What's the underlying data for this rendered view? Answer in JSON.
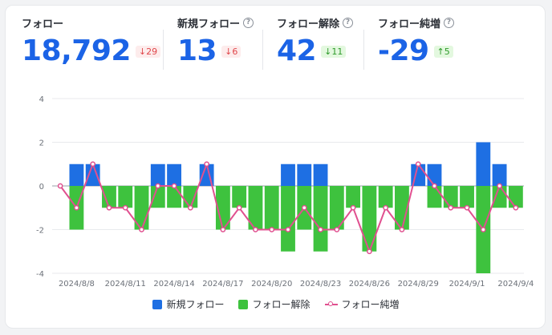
{
  "stats": [
    {
      "label": "フォロー",
      "value": "18,792",
      "delta": "29",
      "arrow": "↓",
      "tone": "red",
      "help": false
    },
    {
      "label": "新規フォロー",
      "value": "13",
      "delta": "6",
      "arrow": "↓",
      "tone": "red",
      "help": true
    },
    {
      "label": "フォロー解除",
      "value": "42",
      "delta": "11",
      "arrow": "↓",
      "tone": "green",
      "help": true
    },
    {
      "label": "フォロー純増",
      "value": "-29",
      "delta": "5",
      "arrow": "↑",
      "tone": "green",
      "help": true
    }
  ],
  "colors": {
    "new": "#1e6fe3",
    "unfollow": "#3ec23e",
    "net": "#e0508f",
    "accent": "#1b63e6"
  },
  "chart_data": {
    "type": "bar",
    "x": [
      "2024/8/7",
      "2024/8/8",
      "2024/8/9",
      "2024/8/10",
      "2024/8/11",
      "2024/8/12",
      "2024/8/13",
      "2024/8/14",
      "2024/8/15",
      "2024/8/16",
      "2024/8/17",
      "2024/8/18",
      "2024/8/19",
      "2024/8/20",
      "2024/8/21",
      "2024/8/22",
      "2024/8/23",
      "2024/8/24",
      "2024/8/25",
      "2024/8/26",
      "2024/8/27",
      "2024/8/28",
      "2024/8/29",
      "2024/8/30",
      "2024/8/31",
      "2024/9/1",
      "2024/9/2",
      "2024/9/3",
      "2024/9/4"
    ],
    "tick_labels": [
      "2024/8/8",
      "2024/8/11",
      "2024/8/14",
      "2024/8/17",
      "2024/8/20",
      "2024/8/23",
      "2024/8/26",
      "2024/8/29",
      "2024/9/1",
      "2024/9/4"
    ],
    "y_ticks": [
      "4",
      "2",
      "0",
      "-2",
      "-4"
    ],
    "ylim": [
      -4,
      4
    ],
    "series": [
      {
        "name": "新規フォロー",
        "kind": "bar",
        "values": [
          0,
          1,
          1,
          0,
          0,
          0,
          1,
          1,
          0,
          1,
          0,
          0,
          0,
          0,
          1,
          1,
          1,
          0,
          0,
          0,
          0,
          0,
          1,
          1,
          0,
          0,
          2,
          1,
          0
        ]
      },
      {
        "name": "フォロー解除",
        "kind": "bar",
        "values": [
          0,
          -2,
          0,
          -1,
          -1,
          -2,
          -1,
          -1,
          -1,
          0,
          -2,
          -1,
          -2,
          -2,
          -3,
          -2,
          -3,
          -2,
          -1,
          -3,
          -1,
          -2,
          0,
          -1,
          -1,
          -1,
          -4,
          -1,
          -1
        ]
      },
      {
        "name": "フォロー純増",
        "kind": "line",
        "values": [
          0,
          -1,
          1,
          -1,
          -1,
          -2,
          0,
          0,
          -1,
          1,
          -2,
          -1,
          -2,
          -2,
          -2,
          -1,
          -2,
          -2,
          -1,
          -3,
          -1,
          -2,
          1,
          0,
          -1,
          -1,
          -2,
          0,
          -1
        ]
      }
    ],
    "grid": true,
    "legend": "bottom"
  }
}
